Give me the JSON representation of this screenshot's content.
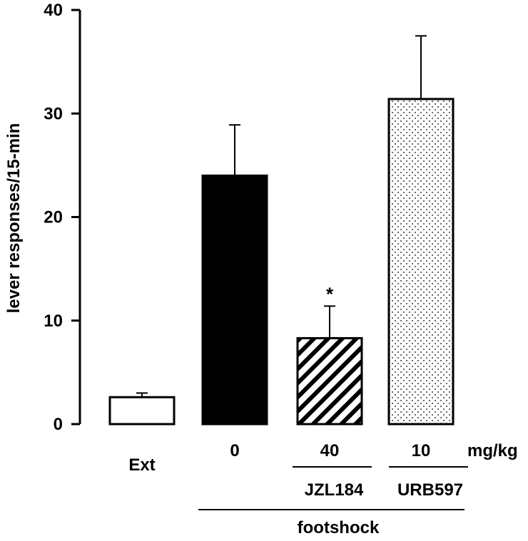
{
  "chart_data": {
    "type": "bar",
    "title": "",
    "xlabel": "",
    "ylabel": "lever responses/15-min",
    "ylim": [
      0,
      40
    ],
    "yticks": [
      0,
      10,
      20,
      30,
      40
    ],
    "grid": false,
    "legend": "none",
    "categories": [
      "Ext",
      "0",
      "40",
      "10"
    ],
    "values": [
      2.6,
      24.0,
      8.3,
      31.4
    ],
    "errors": [
      0.4,
      4.9,
      3.1,
      6.1
    ],
    "fills": [
      "white",
      "black",
      "hatched",
      "dotted"
    ],
    "significance": [
      "",
      "",
      "*",
      ""
    ],
    "unit_label": "mg/kg",
    "drug_labels": [
      "JZL184",
      "URB597"
    ],
    "group_label": "footshock"
  }
}
